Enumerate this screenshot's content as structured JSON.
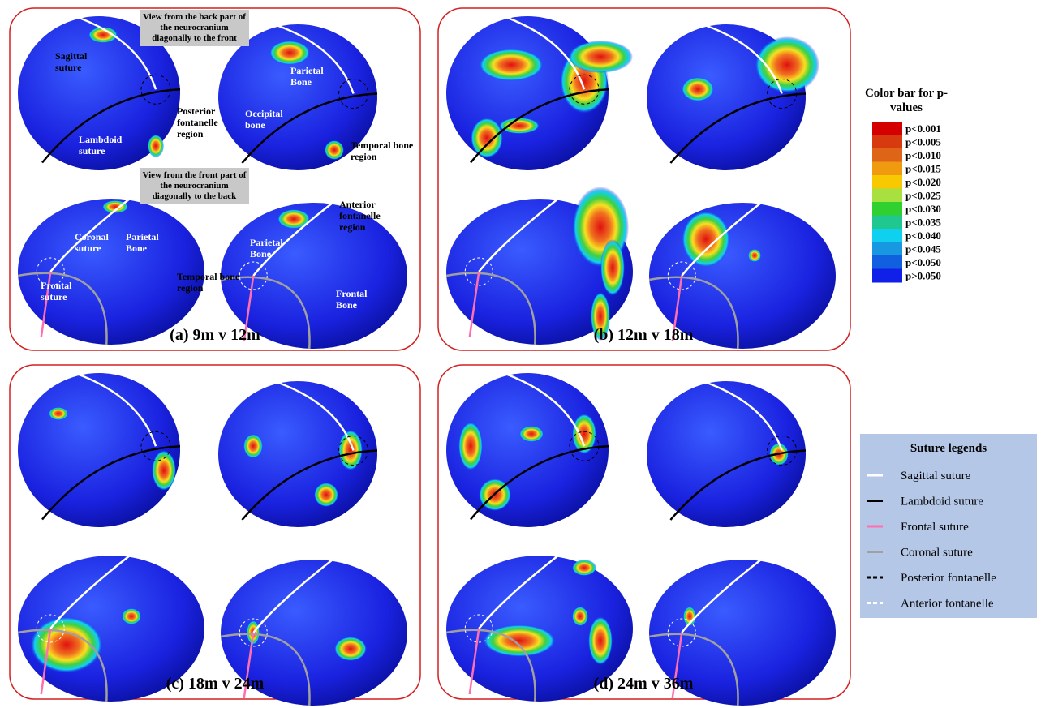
{
  "panels": [
    {
      "caption": "(a) 9m v 12m",
      "annotations": [
        "View from the back part of the neurocranium diagonally to the front",
        "Sagittal suture",
        "Parietal Bone",
        "Posterior fontanelle region",
        "Occipital bone",
        "Lambdoid suture",
        "Temporal bone region",
        "View from the front part of the neurocranium diagonally to the back",
        "Anterior fontanelle region",
        "Coronal suture",
        "Parietal Bone",
        "Parietal Bone",
        "Temporal bone region",
        "Frontal suture",
        "Frontal Bone"
      ]
    },
    {
      "caption": "(b) 12m v 18m"
    },
    {
      "caption": "(c) 18m v 24m"
    },
    {
      "caption": "(d) 24m v 36m"
    }
  ],
  "color_bar": {
    "title": "Color bar for p-values",
    "levels": [
      {
        "label": "p<0.001",
        "color": "#d40000"
      },
      {
        "label": "p<0.005",
        "color": "#d83a10"
      },
      {
        "label": "p<0.010",
        "color": "#de6418"
      },
      {
        "label": "p<0.015",
        "color": "#f09a10"
      },
      {
        "label": "p<0.020",
        "color": "#f8c800"
      },
      {
        "label": "p<0.025",
        "color": "#a8e040"
      },
      {
        "label": "p<0.030",
        "color": "#30d030"
      },
      {
        "label": "p<0.035",
        "color": "#20c890"
      },
      {
        "label": "p<0.040",
        "color": "#10d0f0"
      },
      {
        "label": "p<0.045",
        "color": "#1898e0"
      },
      {
        "label": "p<0.050",
        "color": "#1060e0"
      },
      {
        "label": "p>0.050",
        "color": "#1020e8"
      }
    ]
  },
  "suture_legend": {
    "title": "Suture legends",
    "entries": [
      {
        "label": "Sagittal suture",
        "color": "#ffffff",
        "dash": false
      },
      {
        "label": "Lambdoid suture",
        "color": "#000000",
        "dash": false
      },
      {
        "label": "Frontal suture",
        "color": "#ff6fb0",
        "dash": false
      },
      {
        "label": "Coronal suture",
        "color": "#a0a0a0",
        "dash": false
      },
      {
        "label": "Posterior fontanelle",
        "color": "#000000",
        "dash": true
      },
      {
        "label": "Anterior fontanelle",
        "color": "#ffffff",
        "dash": true
      }
    ]
  }
}
